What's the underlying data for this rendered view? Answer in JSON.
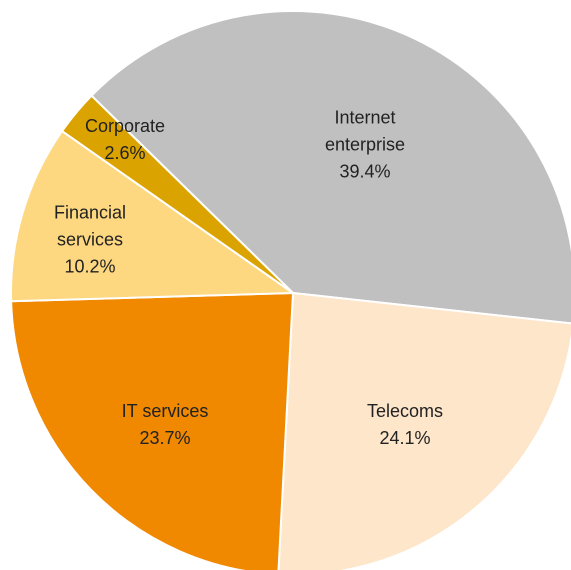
{
  "chart_data": {
    "type": "pie",
    "categories": [
      "Internet enterprise",
      "Telecoms",
      "IT services",
      "Financial services",
      "Corporate"
    ],
    "values": [
      39.4,
      24.1,
      23.7,
      10.2,
      2.6
    ],
    "value_labels": [
      "39.4%",
      "24.1%",
      "23.7%",
      "10.2%",
      "2.6%"
    ],
    "colors": [
      "#c0c0c0",
      "#fde6ca",
      "#f08800",
      "#fdd880",
      "#dba300"
    ]
  }
}
